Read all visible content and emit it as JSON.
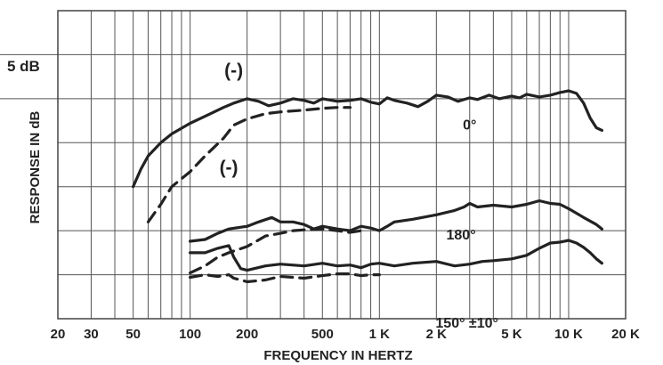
{
  "chart_data": {
    "type": "line",
    "xlabel": "FREQUENCY IN HERTZ",
    "ylabel": "RESPONSE IN dB",
    "x_scale": "log",
    "xlim": [
      20,
      20000
    ],
    "x_ticks": [
      {
        "value": 20,
        "label": "20"
      },
      {
        "value": 30,
        "label": "30"
      },
      {
        "value": 50,
        "label": "50"
      },
      {
        "value": 100,
        "label": "100"
      },
      {
        "value": 200,
        "label": "200"
      },
      {
        "value": 500,
        "label": "500"
      },
      {
        "value": 1000,
        "label": "1 K"
      },
      {
        "value": 2000,
        "label": "2 K"
      },
      {
        "value": 5000,
        "label": "5 K"
      },
      {
        "value": 10000,
        "label": "10 K"
      },
      {
        "value": 20000,
        "label": "20 K"
      }
    ],
    "ylim": [
      -35,
      0
    ],
    "y_grid_step": 5,
    "y_scale_label": "5 dB",
    "grid": true,
    "annotations": [
      {
        "text": "(-)",
        "x": 170,
        "y": -7.5
      },
      {
        "text": "(-)",
        "x": 160,
        "y": -18.5
      },
      {
        "text": "0°",
        "x": 3000,
        "y": -13.5
      },
      {
        "text": "180°",
        "x": 2700,
        "y": -26
      },
      {
        "text": "150° ±10°",
        "x": 2900,
        "y": -36
      }
    ],
    "series": [
      {
        "style": "solid",
        "color": "#222222",
        "points": [
          [
            50,
            -20
          ],
          [
            55,
            -18
          ],
          [
            60,
            -16.5
          ],
          [
            70,
            -15
          ],
          [
            80,
            -14
          ],
          [
            100,
            -12.8
          ],
          [
            120,
            -12
          ],
          [
            150,
            -11
          ],
          [
            170,
            -10.5
          ],
          [
            200,
            -10
          ],
          [
            230,
            -10.3
          ],
          [
            260,
            -10.8
          ],
          [
            300,
            -10.5
          ],
          [
            350,
            -10
          ],
          [
            400,
            -10.2
          ],
          [
            450,
            -10.5
          ],
          [
            500,
            -10
          ],
          [
            600,
            -10.3
          ],
          [
            700,
            -10.2
          ],
          [
            800,
            -10
          ],
          [
            900,
            -10.4
          ],
          [
            1000,
            -10.6
          ],
          [
            1100,
            -9.9
          ],
          [
            1200,
            -10.2
          ],
          [
            1400,
            -10.5
          ],
          [
            1600,
            -10.9
          ],
          [
            1800,
            -10.3
          ],
          [
            2000,
            -9.6
          ],
          [
            2300,
            -9.8
          ],
          [
            2600,
            -10.3
          ],
          [
            3000,
            -9.9
          ],
          [
            3300,
            -10.1
          ],
          [
            3800,
            -9.6
          ],
          [
            4300,
            -10
          ],
          [
            5000,
            -9.7
          ],
          [
            5500,
            -9.9
          ],
          [
            6000,
            -9.5
          ],
          [
            7000,
            -9.8
          ],
          [
            8000,
            -9.6
          ],
          [
            9000,
            -9.3
          ],
          [
            10000,
            -9.1
          ],
          [
            11000,
            -9.4
          ],
          [
            12000,
            -10.5
          ],
          [
            13000,
            -12.2
          ],
          [
            14000,
            -13.3
          ],
          [
            15000,
            -13.6
          ]
        ]
      },
      {
        "style": "dashed",
        "color": "#222222",
        "points": [
          [
            60,
            -24
          ],
          [
            70,
            -22
          ],
          [
            80,
            -20
          ],
          [
            100,
            -18.3
          ],
          [
            120,
            -16.5
          ],
          [
            150,
            -14.5
          ],
          [
            170,
            -13
          ],
          [
            200,
            -12.3
          ],
          [
            250,
            -11.7
          ],
          [
            300,
            -11.5
          ],
          [
            400,
            -11.3
          ],
          [
            500,
            -11.1
          ],
          [
            600,
            -11
          ],
          [
            700,
            -11
          ]
        ]
      },
      {
        "style": "solid",
        "color": "#222222",
        "points": [
          [
            100,
            -26.2
          ],
          [
            120,
            -26
          ],
          [
            140,
            -25.3
          ],
          [
            160,
            -24.8
          ],
          [
            200,
            -24.5
          ],
          [
            230,
            -24
          ],
          [
            270,
            -23.5
          ],
          [
            300,
            -24
          ],
          [
            350,
            -24
          ],
          [
            400,
            -24.3
          ],
          [
            450,
            -24.8
          ],
          [
            500,
            -24.5
          ],
          [
            600,
            -24.8
          ],
          [
            700,
            -25
          ],
          [
            800,
            -24.5
          ],
          [
            900,
            -24.7
          ],
          [
            1000,
            -25
          ],
          [
            1100,
            -24.5
          ],
          [
            1200,
            -24
          ],
          [
            1500,
            -23.7
          ],
          [
            2000,
            -23.2
          ],
          [
            2500,
            -22.7
          ],
          [
            2800,
            -22.3
          ],
          [
            3000,
            -21.9
          ],
          [
            3300,
            -22.3
          ],
          [
            4000,
            -22.1
          ],
          [
            5000,
            -22.3
          ],
          [
            6000,
            -22
          ],
          [
            7000,
            -21.6
          ],
          [
            8000,
            -21.9
          ],
          [
            9000,
            -22
          ],
          [
            10000,
            -22.5
          ],
          [
            12000,
            -23.5
          ],
          [
            14000,
            -24.3
          ],
          [
            15000,
            -24.8
          ]
        ]
      },
      {
        "style": "dashed",
        "color": "#222222",
        "points": [
          [
            100,
            -29.8
          ],
          [
            120,
            -29
          ],
          [
            140,
            -28
          ],
          [
            160,
            -27.5
          ],
          [
            200,
            -26.8
          ],
          [
            250,
            -25.6
          ],
          [
            300,
            -25.3
          ],
          [
            350,
            -25
          ],
          [
            400,
            -24.9
          ],
          [
            500,
            -24.8
          ],
          [
            600,
            -25
          ],
          [
            700,
            -25.2
          ],
          [
            800,
            -25
          ]
        ]
      },
      {
        "style": "solid",
        "color": "#222222",
        "points": [
          [
            100,
            -27.5
          ],
          [
            120,
            -27.5
          ],
          [
            140,
            -27
          ],
          [
            160,
            -26.7
          ],
          [
            170,
            -28
          ],
          [
            185,
            -29.3
          ],
          [
            200,
            -29.5
          ],
          [
            250,
            -29
          ],
          [
            300,
            -28.8
          ],
          [
            400,
            -29
          ],
          [
            500,
            -28.7
          ],
          [
            600,
            -29
          ],
          [
            700,
            -28.9
          ],
          [
            800,
            -29.2
          ],
          [
            900,
            -28.8
          ],
          [
            1000,
            -28.7
          ],
          [
            1200,
            -29
          ],
          [
            1500,
            -28.7
          ],
          [
            2000,
            -28.5
          ],
          [
            2500,
            -29
          ],
          [
            3000,
            -28.8
          ],
          [
            3500,
            -28.5
          ],
          [
            4000,
            -28.4
          ],
          [
            5000,
            -28.2
          ],
          [
            6000,
            -27.8
          ],
          [
            7000,
            -27
          ],
          [
            8000,
            -26.4
          ],
          [
            9000,
            -26.3
          ],
          [
            10000,
            -26.1
          ],
          [
            11000,
            -26.4
          ],
          [
            12000,
            -26.9
          ],
          [
            13000,
            -27.5
          ],
          [
            14000,
            -28.2
          ],
          [
            15000,
            -28.7
          ]
        ]
      },
      {
        "style": "dashed",
        "color": "#222222",
        "points": [
          [
            100,
            -30.3
          ],
          [
            120,
            -30
          ],
          [
            140,
            -30.2
          ],
          [
            160,
            -30
          ],
          [
            170,
            -30.4
          ],
          [
            185,
            -30.6
          ],
          [
            200,
            -30.8
          ],
          [
            250,
            -30.6
          ],
          [
            300,
            -30.2
          ],
          [
            400,
            -30.4
          ],
          [
            500,
            -30.1
          ],
          [
            600,
            -29.9
          ],
          [
            700,
            -29.9
          ],
          [
            800,
            -30.1
          ],
          [
            900,
            -30
          ],
          [
            1000,
            -30
          ]
        ]
      }
    ]
  }
}
